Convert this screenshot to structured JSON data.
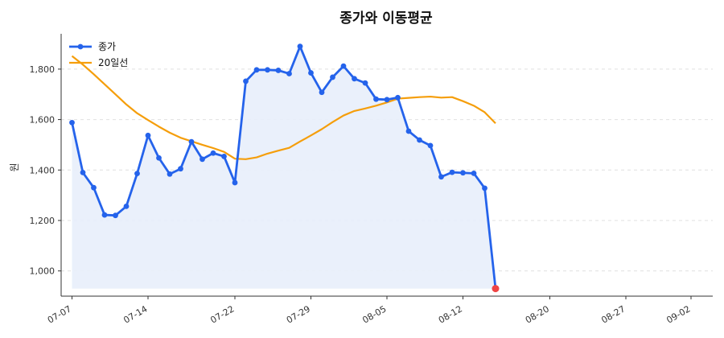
{
  "chart_data": {
    "type": "line",
    "title": "종가와 이동평균",
    "xlabel": "",
    "ylabel": "원",
    "ylim": [
      900,
      1940
    ],
    "xlim": [
      "2025-07-06",
      "2025-09-04"
    ],
    "yticks": [
      1000,
      1200,
      1400,
      1600,
      1800
    ],
    "ytick_labels": [
      "1,000",
      "1,200",
      "1,400",
      "1,600",
      "1,800"
    ],
    "xticks": [
      "2025-07-07",
      "2025-07-14",
      "2025-07-22",
      "2025-07-29",
      "2025-08-05",
      "2025-08-12",
      "2025-08-20",
      "2025-08-27",
      "2025-09-02"
    ],
    "xtick_labels": [
      "07-07",
      "07-14",
      "07-22",
      "07-29",
      "08-05",
      "08-12",
      "08-20",
      "08-27",
      "09-02"
    ],
    "grid": "horizontal dashed",
    "legend_position": "top-left",
    "fill_below_price": true,
    "fill_floor": 930,
    "colors": {
      "price": "#2563eb",
      "ma": "#f59e0b",
      "fill": "#e8eefb",
      "last_point": "#ef4444",
      "grid": "#e0e0e0",
      "axis": "#333333"
    },
    "series": [
      {
        "name": "종가",
        "style": "line-markers",
        "points": [
          [
            "2025-07-07",
            1588
          ],
          [
            "2025-07-08",
            1390
          ],
          [
            "2025-07-09",
            1330
          ],
          [
            "2025-07-10",
            1222
          ],
          [
            "2025-07-11",
            1220
          ],
          [
            "2025-07-12",
            1256
          ],
          [
            "2025-07-13",
            1386
          ],
          [
            "2025-07-14",
            1537
          ],
          [
            "2025-07-15",
            1448
          ],
          [
            "2025-07-16",
            1384
          ],
          [
            "2025-07-17",
            1405
          ],
          [
            "2025-07-18",
            1512
          ],
          [
            "2025-07-19",
            1443
          ],
          [
            "2025-07-20",
            1467
          ],
          [
            "2025-07-21",
            1454
          ],
          [
            "2025-07-22",
            1350
          ],
          [
            "2025-07-23",
            1752
          ],
          [
            "2025-07-24",
            1797
          ],
          [
            "2025-07-25",
            1797
          ],
          [
            "2025-07-26",
            1795
          ],
          [
            "2025-07-27",
            1782
          ],
          [
            "2025-07-28",
            1890
          ],
          [
            "2025-07-29",
            1785
          ],
          [
            "2025-07-30",
            1708
          ],
          [
            "2025-07-31",
            1768
          ],
          [
            "2025-08-01",
            1812
          ],
          [
            "2025-08-02",
            1762
          ],
          [
            "2025-08-03",
            1745
          ],
          [
            "2025-08-04",
            1681
          ],
          [
            "2025-08-05",
            1679
          ],
          [
            "2025-08-06",
            1687
          ],
          [
            "2025-08-07",
            1554
          ],
          [
            "2025-08-08",
            1519
          ],
          [
            "2025-08-09",
            1497
          ],
          [
            "2025-08-10",
            1373
          ],
          [
            "2025-08-11",
            1391
          ],
          [
            "2025-08-12",
            1389
          ],
          [
            "2025-08-13",
            1387
          ],
          [
            "2025-08-14",
            1328
          ],
          [
            "2025-08-15",
            930
          ]
        ]
      },
      {
        "name": "20일선",
        "style": "line",
        "points": [
          [
            "2025-07-07",
            1852
          ],
          [
            "2025-07-08",
            1818
          ],
          [
            "2025-07-09",
            1780
          ],
          [
            "2025-07-10",
            1740
          ],
          [
            "2025-07-11",
            1700
          ],
          [
            "2025-07-12",
            1660
          ],
          [
            "2025-07-13",
            1625
          ],
          [
            "2025-07-14",
            1598
          ],
          [
            "2025-07-15",
            1572
          ],
          [
            "2025-07-16",
            1548
          ],
          [
            "2025-07-17",
            1528
          ],
          [
            "2025-07-18",
            1514
          ],
          [
            "2025-07-19",
            1500
          ],
          [
            "2025-07-20",
            1487
          ],
          [
            "2025-07-21",
            1472
          ],
          [
            "2025-07-22",
            1445
          ],
          [
            "2025-07-23",
            1443
          ],
          [
            "2025-07-24",
            1450
          ],
          [
            "2025-07-25",
            1465
          ],
          [
            "2025-07-26",
            1477
          ],
          [
            "2025-07-27",
            1488
          ],
          [
            "2025-07-28",
            1513
          ],
          [
            "2025-07-29",
            1537
          ],
          [
            "2025-07-30",
            1562
          ],
          [
            "2025-07-31",
            1590
          ],
          [
            "2025-08-01",
            1616
          ],
          [
            "2025-08-02",
            1634
          ],
          [
            "2025-08-03",
            1644
          ],
          [
            "2025-08-04",
            1655
          ],
          [
            "2025-08-05",
            1668
          ],
          [
            "2025-08-06",
            1683
          ],
          [
            "2025-08-07",
            1686
          ],
          [
            "2025-08-08",
            1689
          ],
          [
            "2025-08-09",
            1691
          ],
          [
            "2025-08-10",
            1687
          ],
          [
            "2025-08-11",
            1689
          ],
          [
            "2025-08-12",
            1673
          ],
          [
            "2025-08-13",
            1655
          ],
          [
            "2025-08-14",
            1629
          ],
          [
            "2025-08-15",
            1585
          ]
        ]
      }
    ]
  }
}
